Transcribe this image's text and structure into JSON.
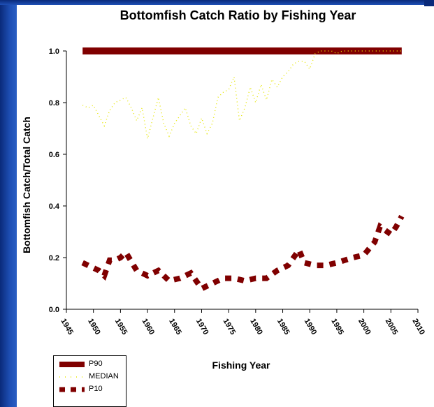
{
  "chart_data": {
    "type": "line",
    "title": "Bottomfish Catch Ratio by Fishing Year",
    "xlabel": "Fishing Year",
    "ylabel": "Bottomfish Catch/Total Catch",
    "xlim": [
      1945,
      2010
    ],
    "ylim": [
      0,
      1
    ],
    "x_ticks": [
      1945,
      1950,
      1955,
      1960,
      1965,
      1970,
      1975,
      1980,
      1985,
      1990,
      1995,
      2000,
      2005,
      2010
    ],
    "y_ticks": [
      0.0,
      0.2,
      0.4,
      0.6,
      0.8,
      1.0
    ],
    "y_tick_labels": [
      "0.0",
      "0.2",
      "0.4",
      "0.6",
      "0.8",
      "1.0"
    ],
    "grid": false,
    "legend_position": "bottom-left",
    "colors": {
      "p90": "#800000",
      "median": "#e6e600",
      "p10": "#800000"
    },
    "series": [
      {
        "name": "P90",
        "style": "thick-line",
        "x": [
          1948,
          2007
        ],
        "y": [
          1.0,
          1.0
        ]
      },
      {
        "name": "MEDIAN",
        "style": "dotted",
        "x": [
          1948,
          1949,
          1950,
          1951,
          1952,
          1953,
          1954,
          1955,
          1956,
          1957,
          1958,
          1959,
          1960,
          1961,
          1962,
          1963,
          1964,
          1965,
          1966,
          1967,
          1968,
          1969,
          1970,
          1971,
          1972,
          1973,
          1974,
          1975,
          1976,
          1977,
          1978,
          1979,
          1980,
          1981,
          1982,
          1983,
          1984,
          1985,
          1986,
          1987,
          1988,
          1989,
          1990,
          1991,
          1992,
          1993,
          1994,
          1995,
          1996,
          1997,
          1998,
          1999,
          2000,
          2001,
          2002,
          2003,
          2004,
          2005,
          2006,
          2007
        ],
        "y": [
          0.79,
          0.78,
          0.79,
          0.75,
          0.71,
          0.77,
          0.8,
          0.81,
          0.82,
          0.78,
          0.73,
          0.78,
          0.66,
          0.74,
          0.82,
          0.72,
          0.67,
          0.72,
          0.75,
          0.78,
          0.71,
          0.68,
          0.74,
          0.68,
          0.72,
          0.82,
          0.84,
          0.85,
          0.9,
          0.73,
          0.78,
          0.86,
          0.8,
          0.87,
          0.81,
          0.89,
          0.86,
          0.9,
          0.92,
          0.95,
          0.96,
          0.96,
          0.93,
          0.99,
          1.0,
          1.0,
          1.0,
          0.99,
          1.0,
          1.0,
          1.0,
          1.0,
          1.0,
          1.0,
          1.0,
          1.0,
          1.0,
          1.0,
          1.0,
          1.0
        ]
      },
      {
        "name": "P10",
        "style": "dashed",
        "x": [
          1948,
          1951,
          1952,
          1953,
          1954,
          1955,
          1956,
          1958,
          1960,
          1962,
          1964,
          1966,
          1968,
          1970,
          1972,
          1974,
          1976,
          1978,
          1980,
          1982,
          1984,
          1986,
          1988,
          1989,
          1991,
          1993,
          1995,
          1998,
          2000,
          2002,
          2003,
          2005,
          2006,
          2007
        ],
        "y": [
          0.18,
          0.15,
          0.13,
          0.19,
          0.19,
          0.2,
          0.22,
          0.15,
          0.13,
          0.15,
          0.11,
          0.12,
          0.14,
          0.08,
          0.1,
          0.12,
          0.12,
          0.11,
          0.12,
          0.12,
          0.15,
          0.17,
          0.23,
          0.18,
          0.17,
          0.17,
          0.18,
          0.2,
          0.21,
          0.26,
          0.32,
          0.29,
          0.32,
          0.36
        ]
      }
    ]
  },
  "legend": {
    "items": [
      {
        "label": "P90"
      },
      {
        "label": "MEDIAN"
      },
      {
        "label": "P10"
      }
    ]
  }
}
